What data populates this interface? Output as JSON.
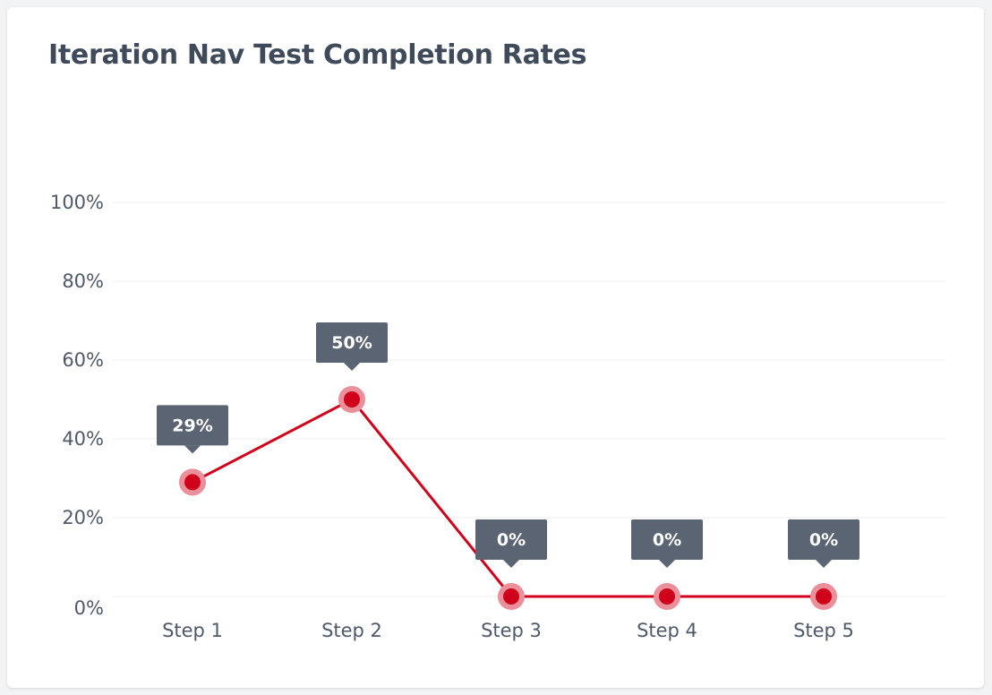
{
  "title": "Iteration Nav Test Completion Rates",
  "colors": {
    "line": "#d0021b",
    "halo": "#eb8f9a",
    "label_bg": "#5b6472"
  },
  "chart_data": {
    "type": "line",
    "title": "Iteration Nav Test Completion Rates",
    "categories": [
      "Step 1",
      "Step 2",
      "Step 3",
      "Step 4",
      "Step 5"
    ],
    "series": [
      {
        "values": [
          29,
          50,
          0,
          0,
          0
        ],
        "data_labels": [
          "29%",
          "50%",
          "0%",
          "0%",
          "0%"
        ]
      }
    ],
    "ylim": [
      0,
      100
    ],
    "yticks": [
      0,
      20,
      40,
      60,
      80,
      100
    ],
    "ytick_labels": [
      "0%",
      "20%",
      "40%",
      "60%",
      "80%",
      "100%"
    ],
    "xlabel": "",
    "ylabel": "",
    "grid": true,
    "legend": "none"
  }
}
